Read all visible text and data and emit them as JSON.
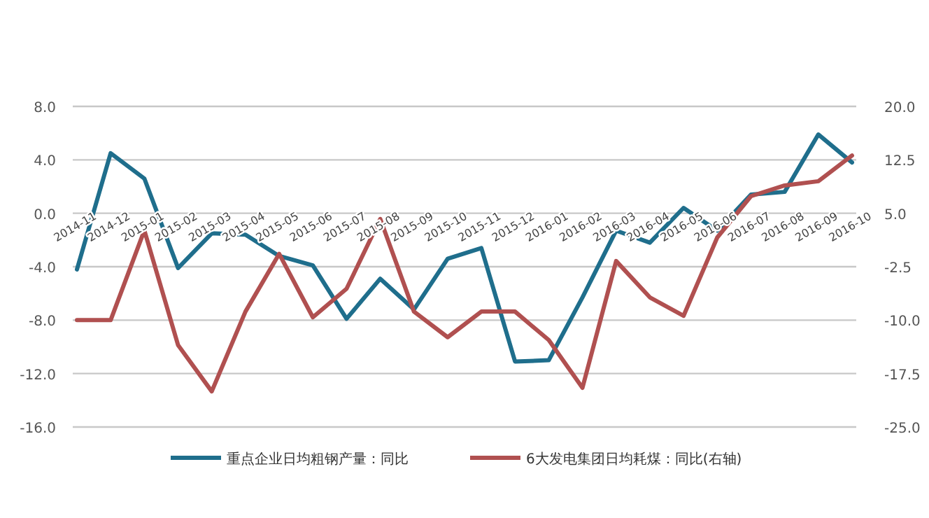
{
  "chart_data": {
    "type": "line",
    "categories": [
      "2014-11",
      "2014-12",
      "2015-01",
      "2015-02",
      "2015-03",
      "2015-04",
      "2015-05",
      "2015-06",
      "2015-07",
      "2015-08",
      "2015-09",
      "2015-10",
      "2015-11",
      "2015-12",
      "2016-01",
      "2016-02",
      "2016-03",
      "2016-04",
      "2016-05",
      "2016-06",
      "2016-07",
      "2016-08",
      "2016-09",
      "2016-10"
    ],
    "series": [
      {
        "name": "重点企业日均粗钢产量：同比",
        "color": "#1f6e8c",
        "values": [
          -4.2,
          4.5,
          2.6,
          -4.1,
          -1.5,
          -1.6,
          -3.2,
          -3.9,
          -7.9,
          -4.9,
          -7.2,
          -3.4,
          -2.6,
          -11.1,
          -11.0,
          -6.3,
          -1.3,
          -2.2,
          0.4,
          -1.3,
          1.4,
          1.6,
          5.9,
          3.8
        ]
      },
      {
        "name": "6大发电集团日均耗煤：同比(右轴)",
        "color": "#b05050",
        "axis": "y2",
        "values": [
          -10.0,
          -10.0,
          2.6,
          -13.5,
          -20.0,
          -8.8,
          -0.7,
          -9.6,
          -5.6,
          4.2,
          -8.8,
          -12.4,
          -8.8,
          -8.8,
          -12.8,
          -19.5,
          -1.7,
          -6.8,
          -9.4,
          1.6,
          7.4,
          8.9,
          9.5,
          13.1
        ]
      }
    ],
    "ylim": [
      -16,
      8
    ],
    "yticks": [
      {
        "value": -16,
        "label": "-16.0"
      },
      {
        "value": -12,
        "label": "-12.0"
      },
      {
        "value": -8,
        "label": "-8.0"
      },
      {
        "value": -4,
        "label": "-4.0"
      },
      {
        "value": 0,
        "label": "0.0"
      },
      {
        "value": 4,
        "label": "4.0"
      },
      {
        "value": 8,
        "label": "8.0"
      }
    ],
    "y2lim": [
      -25,
      20
    ],
    "y2ticks": [
      {
        "value": -25,
        "label": "-25.0"
      },
      {
        "value": -17.5,
        "label": "-17.5"
      },
      {
        "value": -10,
        "label": "-10.0"
      },
      {
        "value": -2.5,
        "label": "-2.5"
      },
      {
        "value": 5,
        "label": "5.0"
      },
      {
        "value": 12.5,
        "label": "12.5"
      },
      {
        "value": 20,
        "label": "20.0"
      }
    ],
    "grid": "y",
    "legend": "bottom"
  }
}
